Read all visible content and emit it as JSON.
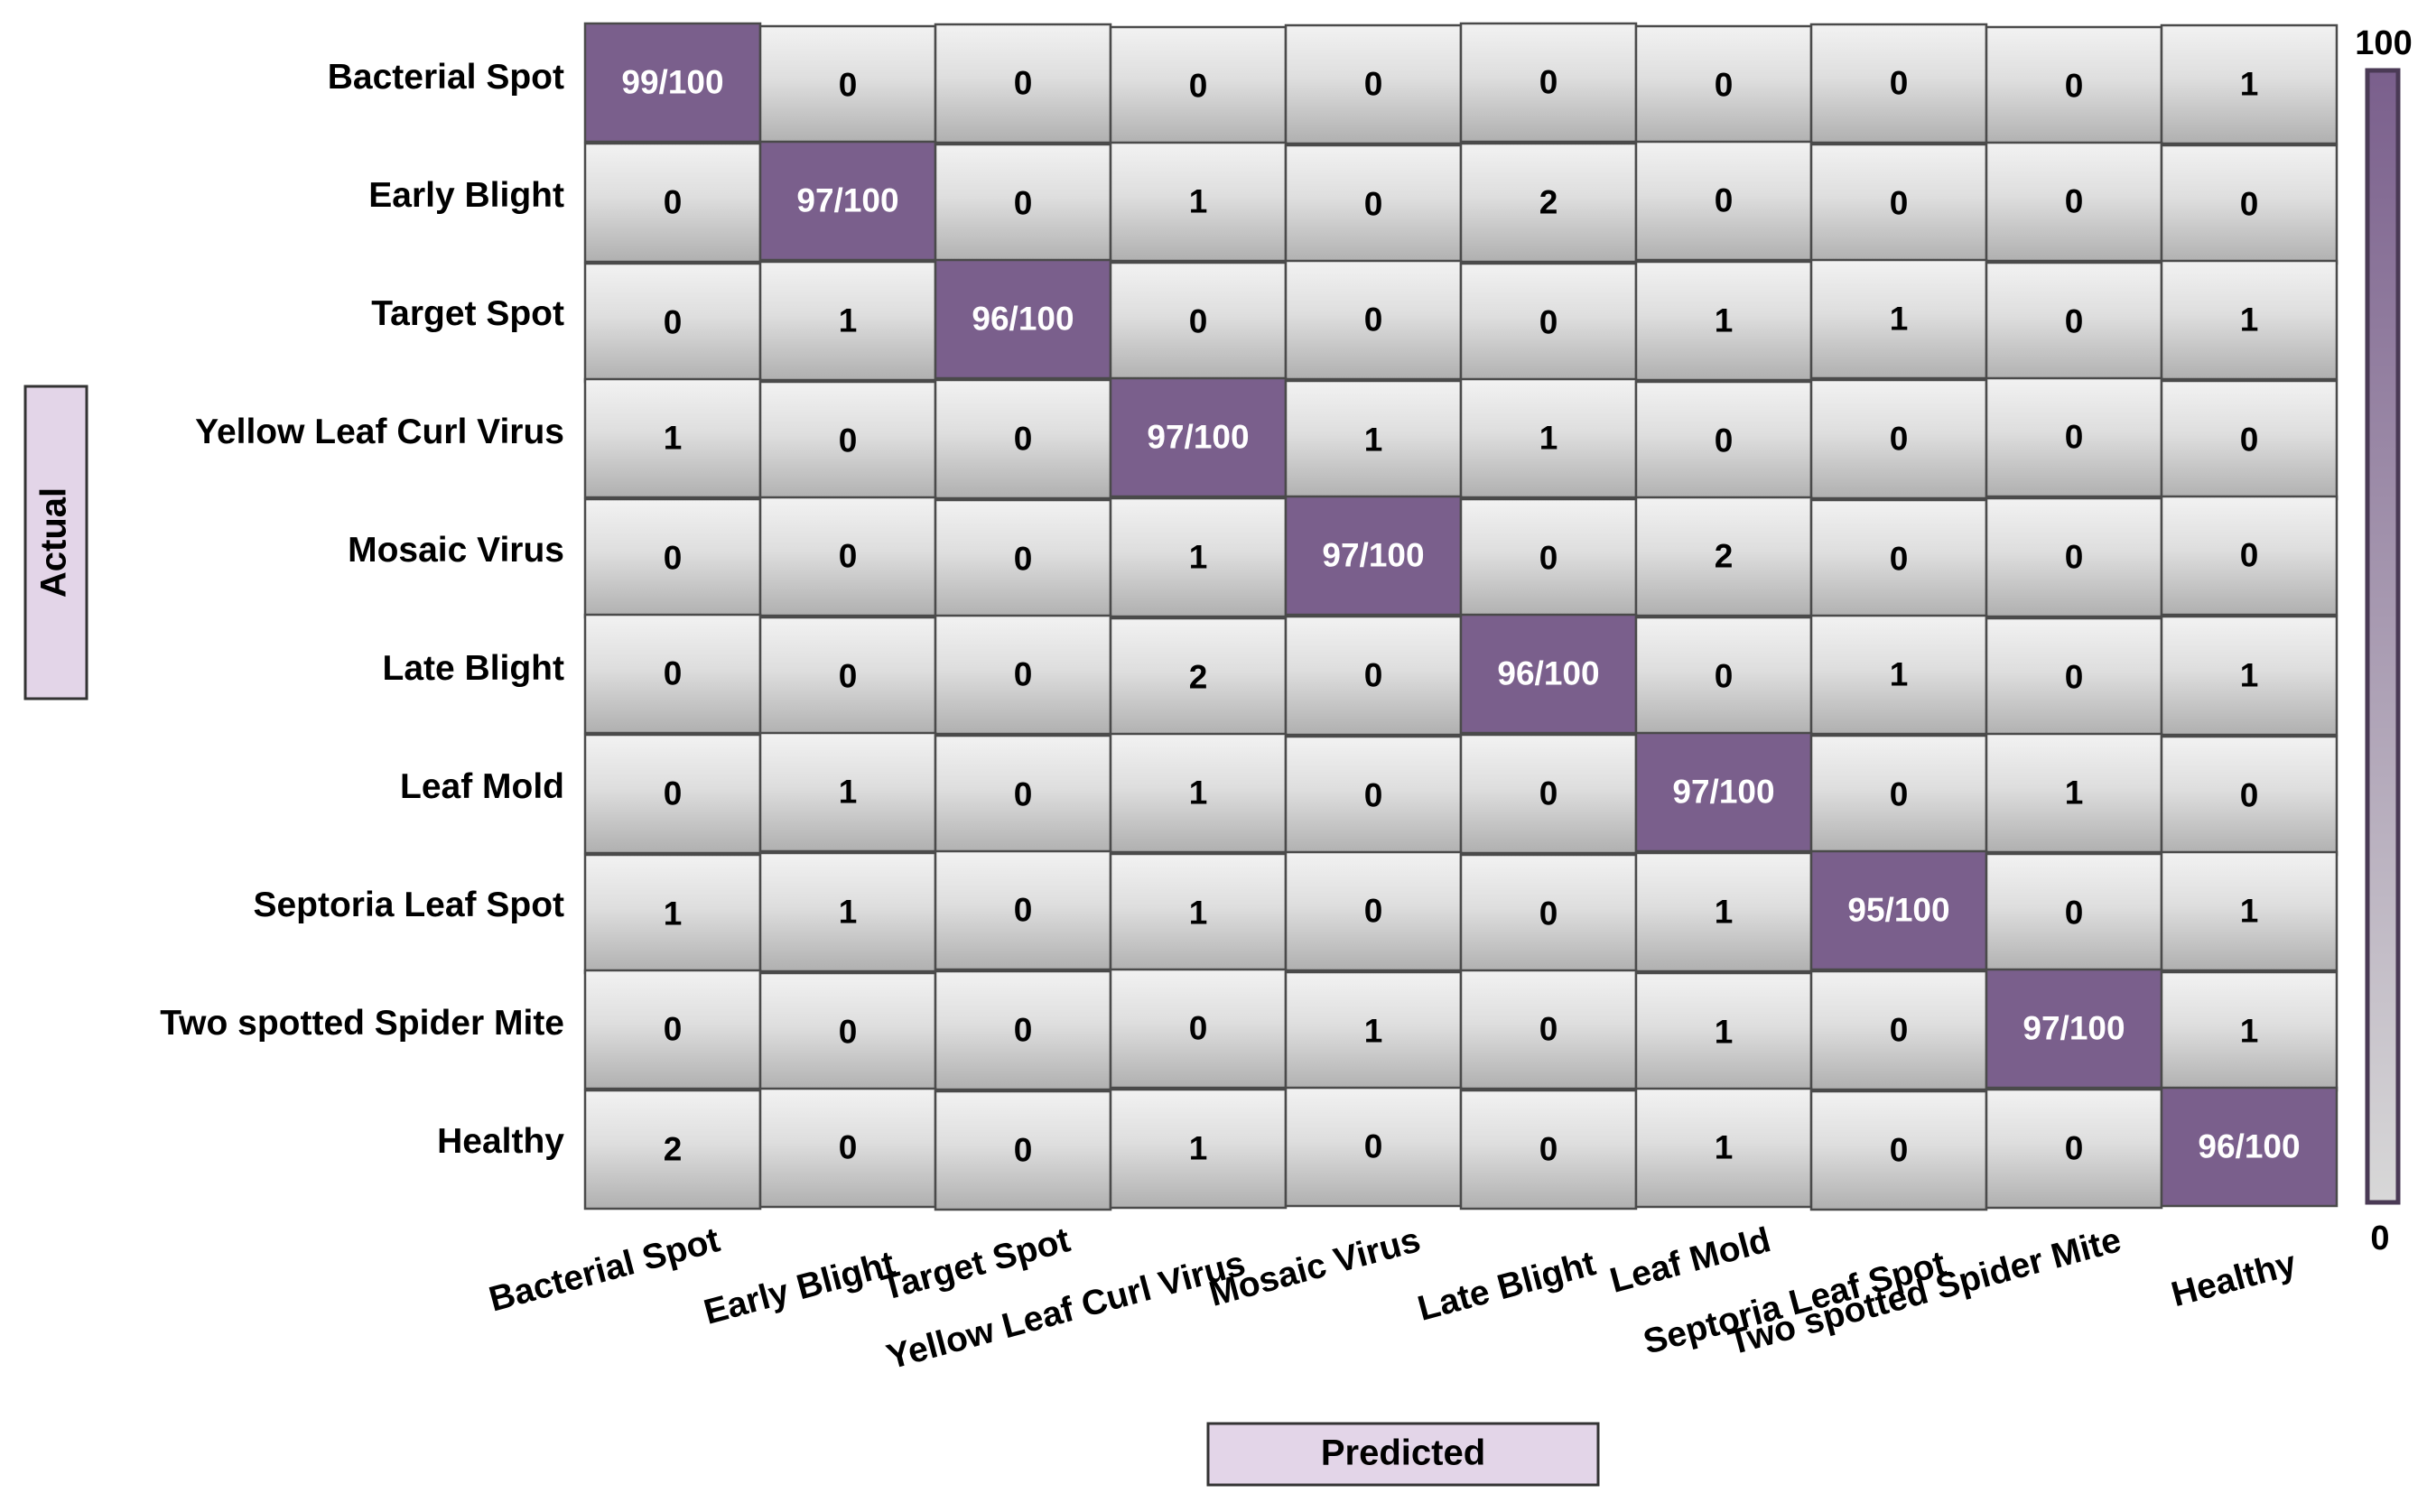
{
  "chart_data": {
    "type": "heatmap",
    "title": "",
    "xlabel": "Predicted",
    "ylabel": "Actual",
    "row_labels": [
      "Bacterial Spot",
      "Early Blight",
      "Target Spot",
      "Yellow Leaf Curl Virus",
      "Mosaic Virus",
      "Late Blight",
      "Leaf Mold",
      "Septoria Leaf Spot",
      "Two spotted Spider Mite",
      "Healthy"
    ],
    "col_labels": [
      "Bacterial Spot",
      "Early Blight",
      "Target Spot",
      "Yellow Leaf Curl Virus",
      "Mosaic Virus",
      "Late Blight",
      "Leaf Mold",
      "Septoria Leaf Spot",
      "Two spotted Spider Mite",
      "Healthy"
    ],
    "values": [
      [
        99,
        0,
        0,
        0,
        0,
        0,
        0,
        0,
        0,
        1
      ],
      [
        0,
        97,
        0,
        1,
        0,
        2,
        0,
        0,
        0,
        0
      ],
      [
        0,
        1,
        96,
        0,
        0,
        0,
        1,
        1,
        0,
        1
      ],
      [
        1,
        0,
        0,
        97,
        1,
        1,
        0,
        0,
        0,
        0
      ],
      [
        0,
        0,
        0,
        1,
        97,
        0,
        2,
        0,
        0,
        0
      ],
      [
        0,
        0,
        0,
        2,
        0,
        96,
        0,
        1,
        0,
        1
      ],
      [
        0,
        1,
        0,
        1,
        0,
        0,
        97,
        0,
        1,
        0
      ],
      [
        1,
        1,
        0,
        1,
        0,
        0,
        1,
        95,
        0,
        1
      ],
      [
        0,
        0,
        0,
        0,
        1,
        0,
        1,
        0,
        97,
        1
      ],
      [
        2,
        0,
        0,
        1,
        0,
        0,
        1,
        0,
        0,
        96
      ]
    ],
    "cell_text": [
      [
        "99/100",
        "0",
        "0",
        "0",
        "0",
        "0",
        "0",
        "0",
        "0",
        "1"
      ],
      [
        "0",
        "97/100",
        "0",
        "1",
        "0",
        "2",
        "0",
        "0",
        "0",
        "0"
      ],
      [
        "0",
        "1",
        "96/100",
        "0",
        "0",
        "0",
        "1",
        "1",
        "0",
        "1"
      ],
      [
        "1",
        "0",
        "0",
        "97/100",
        "1",
        "1",
        "0",
        "0",
        "0",
        "0"
      ],
      [
        "0",
        "0",
        "0",
        "1",
        "97/100",
        "0",
        "2",
        "0",
        "0",
        "0"
      ],
      [
        "0",
        "0",
        "0",
        "2",
        "0",
        "96/100",
        "0",
        "1",
        "0",
        "1"
      ],
      [
        "0",
        "1",
        "0",
        "1",
        "0",
        "0",
        "97/100",
        "0",
        "1",
        "0"
      ],
      [
        "1",
        "1",
        "0",
        "1",
        "0",
        "0",
        "1",
        "95/100",
        "0",
        "1"
      ],
      [
        "0",
        "0",
        "0",
        "0",
        "1",
        "0",
        "1",
        "0",
        "97/100",
        "1"
      ],
      [
        "2",
        "0",
        "0",
        "1",
        "0",
        "0",
        "1",
        "0",
        "0",
        "96/100"
      ]
    ],
    "colorbar": {
      "min": 0,
      "max": 100,
      "min_label": "0",
      "max_label": "100"
    },
    "colors": {
      "diagonal": "#7a5f8c",
      "off_diagonal_light": "#eeeeee",
      "off_diagonal_dark": "#b3b3b3",
      "axis_box": "#e3d5e8",
      "colorbar_top": "#7a5f8c",
      "colorbar_bottom": "#d8d8d8",
      "border": "#4a4a4a"
    }
  }
}
